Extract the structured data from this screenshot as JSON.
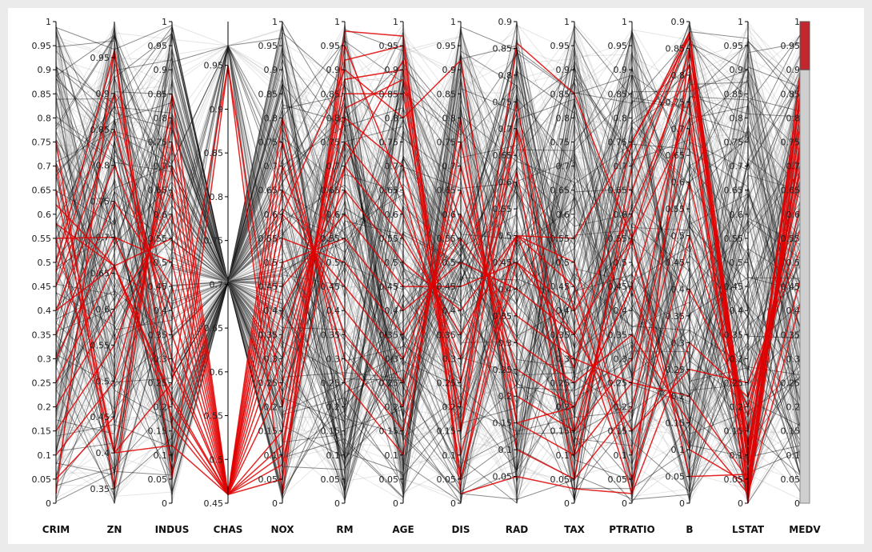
{
  "chart_data": {
    "type": "parallel-coordinates",
    "title": "",
    "axes": [
      {
        "name": "CRIM",
        "min": 0,
        "max": 1,
        "ticks": [
          0,
          0.05,
          0.1,
          0.15,
          0.2,
          0.25,
          0.3,
          0.35,
          0.4,
          0.45,
          0.5,
          0.55,
          0.6,
          0.65,
          0.7,
          0.75,
          0.8,
          0.85,
          0.9,
          0.95,
          1
        ]
      },
      {
        "name": "ZN",
        "min": 0.33,
        "max": 1,
        "ticks": [
          0.35,
          0.4,
          0.45,
          0.5,
          0.55,
          0.6,
          0.65,
          0.7,
          0.75,
          0.8,
          0.85,
          0.9,
          0.95
        ]
      },
      {
        "name": "INDUS",
        "min": 0,
        "max": 1,
        "ticks": [
          0,
          0.05,
          0.1,
          0.15,
          0.2,
          0.25,
          0.3,
          0.35,
          0.4,
          0.45,
          0.5,
          0.55,
          0.6,
          0.65,
          0.7,
          0.75,
          0.8,
          0.85,
          0.9,
          0.95,
          1
        ]
      },
      {
        "name": "CHAS",
        "min": 0.45,
        "max": 1,
        "ticks": [
          0.45,
          0.5,
          0.55,
          0.6,
          0.65,
          0.7,
          0.75,
          0.8,
          0.85,
          0.9,
          0.95
        ]
      },
      {
        "name": "NOX",
        "min": 0,
        "max": 1,
        "ticks": [
          0,
          0.05,
          0.1,
          0.15,
          0.2,
          0.25,
          0.3,
          0.35,
          0.4,
          0.45,
          0.5,
          0.55,
          0.6,
          0.65,
          0.7,
          0.75,
          0.8,
          0.85,
          0.9,
          0.95,
          1
        ]
      },
      {
        "name": "RM",
        "min": 0,
        "max": 1,
        "ticks": [
          0,
          0.05,
          0.1,
          0.15,
          0.2,
          0.25,
          0.3,
          0.35,
          0.4,
          0.45,
          0.5,
          0.55,
          0.6,
          0.65,
          0.7,
          0.75,
          0.8,
          0.85,
          0.9,
          0.95,
          1
        ]
      },
      {
        "name": "AGE",
        "min": 0,
        "max": 1,
        "ticks": [
          0,
          0.05,
          0.1,
          0.15,
          0.2,
          0.25,
          0.3,
          0.35,
          0.4,
          0.45,
          0.5,
          0.55,
          0.6,
          0.65,
          0.7,
          0.75,
          0.8,
          0.85,
          0.9,
          0.95,
          1
        ]
      },
      {
        "name": "DIS",
        "min": 0,
        "max": 1,
        "ticks": [
          0,
          0.05,
          0.1,
          0.15,
          0.2,
          0.25,
          0.3,
          0.35,
          0.4,
          0.45,
          0.5,
          0.55,
          0.6,
          0.65,
          0.7,
          0.75,
          0.8,
          0.85,
          0.9,
          0.95,
          1
        ]
      },
      {
        "name": "RAD",
        "min": 0,
        "max": 0.9,
        "ticks": [
          0.05,
          0.1,
          0.15,
          0.2,
          0.25,
          0.3,
          0.35,
          0.4,
          0.45,
          0.5,
          0.55,
          0.6,
          0.65,
          0.7,
          0.75,
          0.8,
          0.85,
          0.9
        ]
      },
      {
        "name": "TAX",
        "min": 0,
        "max": 1,
        "ticks": [
          0,
          0.05,
          0.1,
          0.15,
          0.2,
          0.25,
          0.3,
          0.35,
          0.4,
          0.45,
          0.5,
          0.55,
          0.6,
          0.65,
          0.7,
          0.75,
          0.8,
          0.85,
          0.9,
          0.95,
          1
        ]
      },
      {
        "name": "PTRATIO",
        "min": 0,
        "max": 1,
        "ticks": [
          0,
          0.05,
          0.1,
          0.15,
          0.2,
          0.25,
          0.3,
          0.35,
          0.4,
          0.45,
          0.5,
          0.55,
          0.6,
          0.65,
          0.7,
          0.75,
          0.8,
          0.85,
          0.9,
          0.95,
          1
        ]
      },
      {
        "name": "B",
        "min": 0,
        "max": 0.9,
        "ticks": [
          0,
          0.05,
          0.1,
          0.15,
          0.2,
          0.25,
          0.3,
          0.35,
          0.4,
          0.45,
          0.5,
          0.55,
          0.6,
          0.65,
          0.7,
          0.75,
          0.8,
          0.85,
          0.9
        ]
      },
      {
        "name": "LSTAT",
        "min": 0,
        "max": 1,
        "ticks": [
          0,
          0.05,
          0.1,
          0.15,
          0.2,
          0.25,
          0.3,
          0.35,
          0.4,
          0.45,
          0.5,
          0.55,
          0.6,
          0.65,
          0.7,
          0.75,
          0.8,
          0.85,
          0.9,
          0.95,
          1
        ]
      },
      {
        "name": "MEDV",
        "min": 0,
        "max": 1,
        "ticks": [
          0,
          0.05,
          0.1,
          0.15,
          0.2,
          0.25,
          0.3,
          0.35,
          0.4,
          0.45,
          0.5,
          0.55,
          0.6,
          0.65,
          0.7,
          0.75,
          0.8,
          0.85,
          0.9,
          0.95,
          1
        ]
      }
    ],
    "series": [
      {
        "values": [
          0.62,
          0.66,
          0.21,
          0.46,
          0.1,
          0.92,
          0.95,
          0.05,
          0.5,
          0.28,
          0.75,
          0.88,
          0.02,
          0.88
        ]
      },
      {
        "values": [
          0.58,
          0.66,
          0.22,
          0.46,
          0.15,
          0.88,
          0.9,
          0.1,
          0.5,
          0.55,
          0.75,
          0.87,
          0.05,
          0.85
        ]
      },
      {
        "values": [
          0.55,
          0.4,
          0.25,
          0.95,
          0.2,
          0.85,
          0.85,
          0.15,
          0.86,
          0.85,
          0.55,
          0.85,
          0.08,
          0.8
        ]
      },
      {
        "values": [
          0.5,
          0.96,
          0.16,
          0.46,
          0.05,
          0.95,
          0.65,
          0.2,
          0.75,
          0.15,
          0.3,
          0.8,
          0.1,
          0.92
        ]
      },
      {
        "values": [
          0.48,
          0.9,
          0.3,
          0.46,
          0.25,
          0.8,
          0.7,
          0.25,
          0.7,
          0.1,
          0.25,
          0.7,
          0.12,
          0.78
        ]
      },
      {
        "values": [
          0.45,
          0.85,
          0.35,
          0.46,
          0.3,
          0.75,
          0.6,
          0.3,
          0.62,
          0.05,
          0.2,
          0.6,
          0.15,
          0.75
        ]
      },
      {
        "values": [
          0.4,
          0.8,
          0.4,
          0.46,
          0.35,
          0.7,
          0.55,
          0.35,
          0.5,
          0.5,
          0.1,
          0.5,
          0.18,
          0.7
        ]
      },
      {
        "values": [
          0.35,
          0.75,
          0.45,
          0.46,
          0.4,
          0.65,
          0.5,
          0.4,
          0.5,
          0.45,
          0.05,
          0.4,
          0.2,
          0.65
        ]
      },
      {
        "values": [
          0.3,
          0.7,
          0.5,
          0.46,
          0.45,
          0.6,
          0.45,
          0.45,
          0.45,
          0.4,
          0.02,
          0.3,
          0.22,
          0.6
        ]
      },
      {
        "values": [
          0.25,
          0.66,
          0.55,
          0.46,
          0.5,
          0.55,
          0.4,
          0.5,
          0.4,
          0.35,
          0.15,
          0.25,
          0.25,
          0.55
        ]
      },
      {
        "values": [
          0.2,
          0.6,
          0.6,
          0.46,
          0.55,
          0.5,
          0.35,
          0.55,
          0.35,
          0.3,
          0.25,
          0.2,
          0.05,
          0.5
        ]
      },
      {
        "values": [
          0.15,
          0.55,
          0.65,
          0.46,
          0.6,
          0.45,
          0.3,
          0.6,
          0.3,
          0.25,
          0.35,
          0.15,
          0.02,
          0.45
        ]
      },
      {
        "values": [
          0.1,
          0.5,
          0.7,
          0.46,
          0.65,
          0.4,
          0.25,
          0.65,
          0.25,
          0.2,
          0.45,
          0.1,
          0.04,
          0.85
        ]
      },
      {
        "values": [
          0.05,
          0.45,
          0.75,
          0.46,
          0.7,
          0.35,
          0.2,
          0.7,
          0.2,
          0.15,
          0.55,
          0.05,
          0.06,
          0.8
        ]
      },
      {
        "values": [
          0.7,
          0.4,
          0.8,
          0.46,
          0.75,
          0.3,
          0.15,
          0.75,
          0.15,
          0.1,
          0.65,
          0.88,
          0.08,
          0.95
        ]
      },
      {
        "values": [
          0.75,
          0.35,
          0.85,
          0.46,
          0.8,
          0.25,
          0.1,
          0.8,
          0.1,
          0.05,
          0.7,
          0.88,
          0.1,
          0.9
        ]
      },
      {
        "values": [
          0.02,
          0.96,
          0.05,
          0.95,
          0.02,
          0.98,
          0.97,
          0.02,
          0.05,
          0.03,
          0.02,
          0.85,
          0.03,
          0.97
        ]
      },
      {
        "values": [
          0.65,
          0.4,
          0.12,
          0.46,
          0.6,
          0.9,
          0.8,
          0.92,
          0.15,
          0.2,
          0.45,
          0.75,
          0.0,
          0.92
        ]
      },
      {
        "values": [
          0.4,
          0.66,
          0.18,
          0.46,
          0.12,
          0.82,
          0.88,
          0.05,
          0.45,
          0.35,
          0.55,
          0.72,
          0.01,
          0.82
        ]
      },
      {
        "values": [
          0.55,
          0.7,
          0.28,
          0.46,
          0.08,
          0.7,
          0.92,
          0.15,
          0.7,
          0.4,
          0.6,
          0.82,
          0.12,
          0.74
        ]
      }
    ],
    "medv_brush": [
      0.9,
      1.0
    ]
  }
}
